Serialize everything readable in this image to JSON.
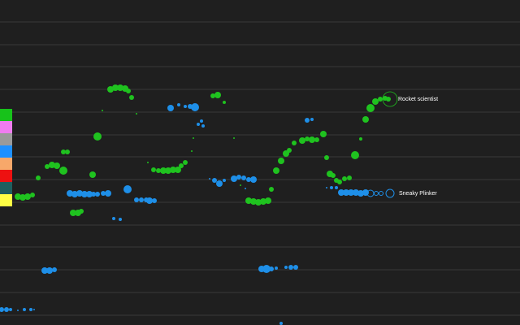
{
  "colors": {
    "background": "#1f1f1f",
    "gridline": "#3a3a3a",
    "green": "#1fc21f",
    "blue": "#1e8fe8",
    "label": "#ffffff"
  },
  "color_swatches": [
    {
      "name": "green",
      "color": "#17c21a"
    },
    {
      "name": "pink",
      "color": "#f07cf0"
    },
    {
      "name": "grey",
      "color": "#9a9a9a"
    },
    {
      "name": "blue",
      "color": "#1e90ff"
    },
    {
      "name": "orange",
      "color": "#f7a86a"
    },
    {
      "name": "red",
      "color": "#ee1111"
    },
    {
      "name": "teal",
      "color": "#1f5f5f"
    },
    {
      "name": "yellow",
      "color": "#ffff44"
    }
  ],
  "players": [
    {
      "name": "Rocket scientist",
      "color_key": "green",
      "highlighted": true
    },
    {
      "name": "Sneaky Plinker",
      "color_key": "blue",
      "highlighted": true
    }
  ]
}
